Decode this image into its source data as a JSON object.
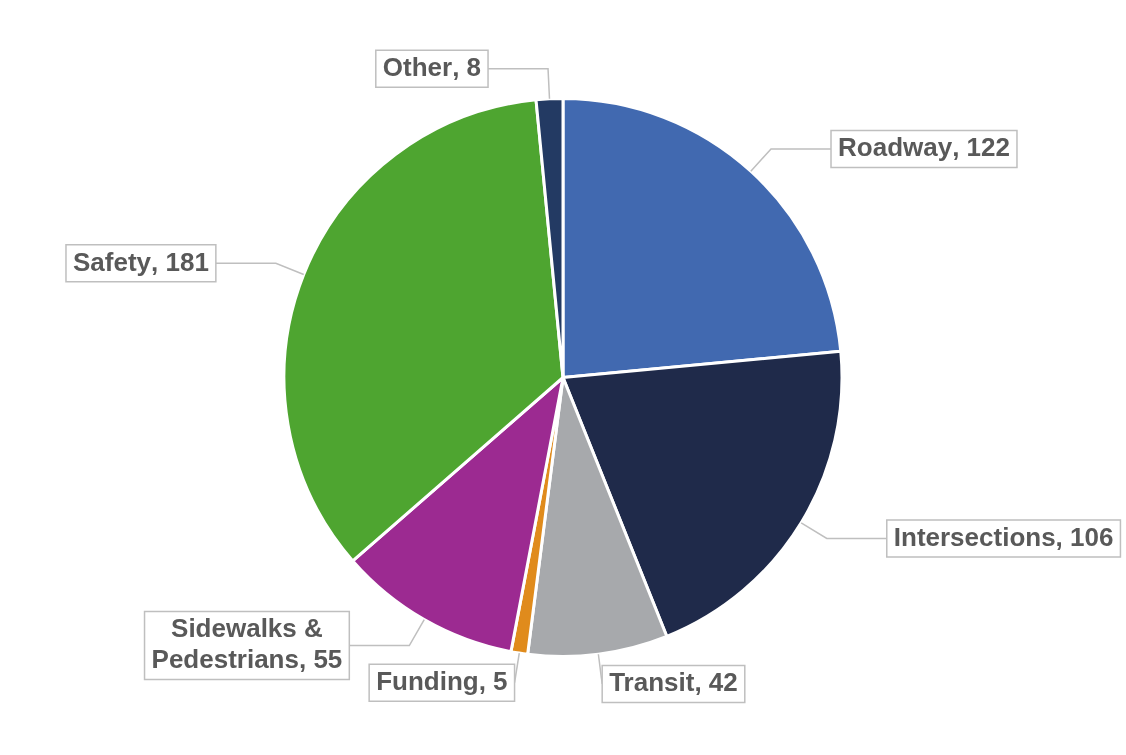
{
  "chart_data": {
    "type": "pie",
    "categories": [
      "Roadway",
      "Intersections",
      "Transit",
      "Funding",
      "Sidewalks & Pedestrians",
      "Safety",
      "Other"
    ],
    "values": [
      122,
      106,
      42,
      5,
      55,
      181,
      8
    ],
    "colors": [
      "#4169b0",
      "#1f2a4a",
      "#a7a9ac",
      "#e08b1c",
      "#9c2a91",
      "#4ea530",
      "#233a63"
    ],
    "value_labels": [
      ", 122",
      ", 106",
      ", 42",
      ", 5",
      ", 55",
      ", 181",
      ", 8"
    ]
  }
}
